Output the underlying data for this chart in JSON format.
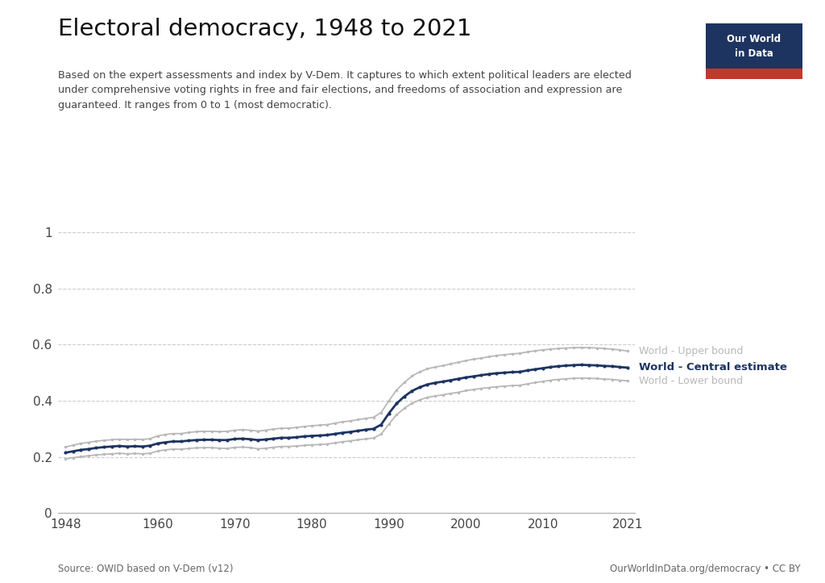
{
  "title": "Electoral democracy, 1948 to 2021",
  "subtitle": "Based on the expert assessments and index by V-Dem. It captures to which extent political leaders are elected\nunder comprehensive voting rights in free and fair elections, and freedoms of association and expression are\nguaranteed. It ranges from 0 to 1 (most democratic).",
  "source_left": "Source: OWID based on V-Dem (v12)",
  "source_right": "OurWorldInData.org/democracy • CC BY",
  "years": [
    1948,
    1949,
    1950,
    1951,
    1952,
    1953,
    1954,
    1955,
    1956,
    1957,
    1958,
    1959,
    1960,
    1961,
    1962,
    1963,
    1964,
    1965,
    1966,
    1967,
    1968,
    1969,
    1970,
    1971,
    1972,
    1973,
    1974,
    1975,
    1976,
    1977,
    1978,
    1979,
    1980,
    1981,
    1982,
    1983,
    1984,
    1985,
    1986,
    1987,
    1988,
    1989,
    1990,
    1991,
    1992,
    1993,
    1994,
    1995,
    1996,
    1997,
    1998,
    1999,
    2000,
    2001,
    2002,
    2003,
    2004,
    2005,
    2006,
    2007,
    2008,
    2009,
    2010,
    2011,
    2012,
    2013,
    2014,
    2015,
    2016,
    2017,
    2018,
    2019,
    2020,
    2021
  ],
  "central": [
    0.215,
    0.22,
    0.225,
    0.228,
    0.232,
    0.235,
    0.237,
    0.239,
    0.237,
    0.238,
    0.237,
    0.24,
    0.248,
    0.252,
    0.255,
    0.255,
    0.258,
    0.26,
    0.261,
    0.261,
    0.26,
    0.26,
    0.264,
    0.265,
    0.263,
    0.26,
    0.262,
    0.265,
    0.268,
    0.268,
    0.27,
    0.273,
    0.275,
    0.276,
    0.278,
    0.282,
    0.286,
    0.289,
    0.293,
    0.297,
    0.3,
    0.315,
    0.355,
    0.39,
    0.415,
    0.435,
    0.448,
    0.458,
    0.464,
    0.468,
    0.473,
    0.478,
    0.483,
    0.487,
    0.491,
    0.495,
    0.498,
    0.5,
    0.502,
    0.503,
    0.508,
    0.512,
    0.516,
    0.52,
    0.523,
    0.525,
    0.527,
    0.528,
    0.527,
    0.526,
    0.524,
    0.523,
    0.52,
    0.518
  ],
  "upper": [
    0.235,
    0.242,
    0.248,
    0.252,
    0.256,
    0.259,
    0.261,
    0.263,
    0.262,
    0.263,
    0.262,
    0.265,
    0.275,
    0.28,
    0.283,
    0.283,
    0.287,
    0.29,
    0.291,
    0.291,
    0.29,
    0.291,
    0.295,
    0.297,
    0.295,
    0.292,
    0.295,
    0.299,
    0.302,
    0.302,
    0.305,
    0.308,
    0.311,
    0.313,
    0.315,
    0.32,
    0.325,
    0.328,
    0.333,
    0.337,
    0.341,
    0.358,
    0.4,
    0.438,
    0.465,
    0.488,
    0.503,
    0.514,
    0.52,
    0.525,
    0.531,
    0.537,
    0.543,
    0.548,
    0.552,
    0.557,
    0.561,
    0.564,
    0.567,
    0.569,
    0.574,
    0.578,
    0.581,
    0.584,
    0.586,
    0.588,
    0.589,
    0.59,
    0.589,
    0.588,
    0.586,
    0.584,
    0.581,
    0.577
  ],
  "lower": [
    0.193,
    0.197,
    0.201,
    0.204,
    0.207,
    0.209,
    0.211,
    0.213,
    0.211,
    0.212,
    0.211,
    0.213,
    0.221,
    0.225,
    0.228,
    0.227,
    0.23,
    0.232,
    0.233,
    0.233,
    0.231,
    0.23,
    0.234,
    0.235,
    0.233,
    0.229,
    0.231,
    0.234,
    0.237,
    0.237,
    0.239,
    0.241,
    0.243,
    0.244,
    0.246,
    0.25,
    0.254,
    0.257,
    0.261,
    0.264,
    0.267,
    0.281,
    0.317,
    0.35,
    0.373,
    0.391,
    0.403,
    0.412,
    0.417,
    0.421,
    0.426,
    0.43,
    0.436,
    0.44,
    0.444,
    0.447,
    0.45,
    0.452,
    0.454,
    0.455,
    0.46,
    0.465,
    0.469,
    0.473,
    0.476,
    0.478,
    0.48,
    0.481,
    0.48,
    0.479,
    0.477,
    0.476,
    0.473,
    0.471
  ],
  "central_color": "#1d3461",
  "bounds_color": "#b8b8b8",
  "bg_color": "#ffffff",
  "grid_color": "#cccccc",
  "xlabel_ticks": [
    1948,
    1960,
    1970,
    1980,
    1990,
    2000,
    2010,
    2021
  ],
  "ytick_vals": [
    0,
    0.2,
    0.4,
    0.6,
    0.8,
    1.0
  ],
  "ytick_labels": [
    "0",
    "0.2",
    "0.4",
    "0.6",
    "0.8",
    "1"
  ],
  "ylim": [
    0,
    1.08
  ],
  "xlim": [
    1947,
    2022
  ]
}
